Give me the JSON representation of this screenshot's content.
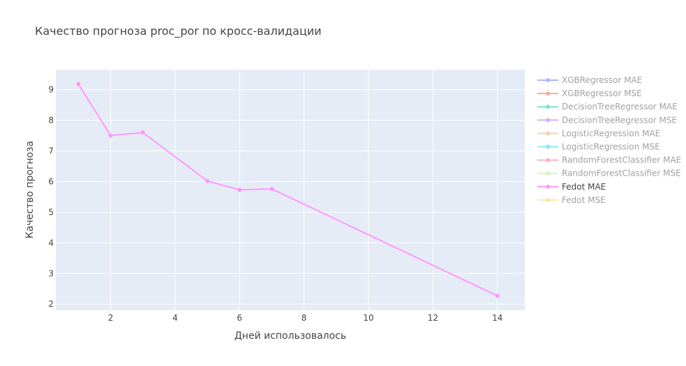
{
  "chart_data": {
    "type": "line",
    "title": "Качество прогноза proc_por по кросс-валидации",
    "xlabel": "Дней использовалось",
    "ylabel": "Качество прогноза",
    "xlim": [
      0.3,
      14.85
    ],
    "ylim": [
      1.8,
      9.65
    ],
    "x_ticks": [
      2,
      4,
      6,
      8,
      10,
      12,
      14
    ],
    "y_ticks": [
      2,
      3,
      4,
      5,
      6,
      7,
      8,
      9
    ],
    "grid": true,
    "legend_position": "right",
    "series": [
      {
        "name": "XGBRegressor MAE",
        "color": "#636efa",
        "visible": false,
        "x": [],
        "y": []
      },
      {
        "name": "XGBRegressor MSE",
        "color": "#ef553b",
        "visible": false,
        "x": [],
        "y": []
      },
      {
        "name": "DecisionTreeRegressor MAE",
        "color": "#00cc96",
        "visible": false,
        "x": [],
        "y": []
      },
      {
        "name": "DecisionTreeRegressor MSE",
        "color": "#ab63fa",
        "visible": false,
        "x": [],
        "y": []
      },
      {
        "name": "LogisticRegression MAE",
        "color": "#ffa15a",
        "visible": false,
        "x": [],
        "y": []
      },
      {
        "name": "LogisticRegression MSE",
        "color": "#19d3f3",
        "visible": false,
        "x": [],
        "y": []
      },
      {
        "name": "RandomForestClassifier MAE",
        "color": "#ff6692",
        "visible": false,
        "x": [],
        "y": []
      },
      {
        "name": "RandomForestClassifier MSE",
        "color": "#b6e880",
        "visible": false,
        "x": [],
        "y": []
      },
      {
        "name": "Fedot MAE",
        "color": "#ff97ff",
        "visible": true,
        "x": [
          1,
          2,
          3,
          5,
          6,
          7,
          14
        ],
        "y": [
          9.18,
          7.5,
          7.6,
          6.02,
          5.73,
          5.76,
          2.27
        ]
      },
      {
        "name": "Fedot MSE",
        "color": "#fecb52",
        "visible": false,
        "x": [],
        "y": []
      }
    ]
  }
}
